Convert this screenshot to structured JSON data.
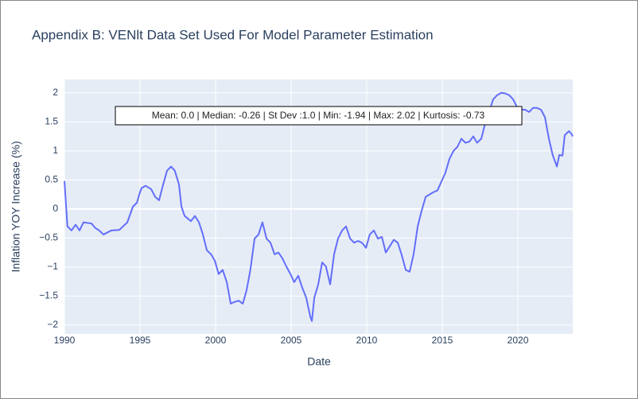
{
  "chart_data": {
    "type": "line",
    "title": "Appendix B: VENlt Data Set Used For Model Parameter Estimation",
    "x_label": "Date",
    "y_label": "Inflation YOY Increase (%)",
    "annotation": "Mean: 0.0 | Median: -0.26 | St Dev :1.0 | Min: -1.94 | Max: 2.02 | Kurtosis: -0.73",
    "xlim": [
      1990,
      2023.63
    ],
    "ylim": [
      -2.15,
      2.23
    ],
    "xticks": [
      1990,
      1995,
      2000,
      2005,
      2010,
      2015,
      2020
    ],
    "yticks": [
      {
        "value": -2,
        "label": "−2"
      },
      {
        "value": -1.5,
        "label": "−1.5"
      },
      {
        "value": -1,
        "label": "−1"
      },
      {
        "value": -0.5,
        "label": "−0.5"
      },
      0,
      0.5,
      1,
      1.5,
      2
    ],
    "grid": true,
    "x": [
      1990.0,
      1990.2,
      1990.47,
      1990.74,
      1991.0,
      1991.26,
      1991.79,
      1992.05,
      1992.3,
      1992.58,
      1993.1,
      1993.63,
      1994.16,
      1994.53,
      1994.8,
      1994.95,
      1995.1,
      1995.37,
      1995.74,
      1996.0,
      1996.26,
      1996.53,
      1996.79,
      1997.05,
      1997.3,
      1997.58,
      1997.74,
      1997.95,
      1998.37,
      1998.63,
      1998.9,
      1999.16,
      1999.42,
      1999.7,
      1999.95,
      2000.2,
      2000.47,
      2000.74,
      2001.0,
      2001.26,
      2001.53,
      2001.8,
      2002.05,
      2002.3,
      2002.58,
      2002.84,
      2003.1,
      2003.37,
      2003.63,
      2003.9,
      2004.16,
      2004.42,
      2004.68,
      2004.95,
      2005.2,
      2005.47,
      2005.74,
      2006.0,
      2006.26,
      2006.37,
      2006.53,
      2006.79,
      2007.05,
      2007.3,
      2007.58,
      2007.84,
      2008.1,
      2008.37,
      2008.63,
      2008.9,
      2009.16,
      2009.42,
      2009.68,
      2009.95,
      2010.2,
      2010.47,
      2010.74,
      2011.0,
      2011.26,
      2011.53,
      2011.79,
      2012.05,
      2012.3,
      2012.58,
      2012.84,
      2013.1,
      2013.37,
      2013.63,
      2013.9,
      2014.16,
      2014.42,
      2014.68,
      2014.95,
      2015.2,
      2015.47,
      2015.74,
      2016.0,
      2016.26,
      2016.53,
      2016.79,
      2017.05,
      2017.3,
      2017.58,
      2017.84,
      2018.1,
      2018.37,
      2018.63,
      2018.9,
      2019.16,
      2019.42,
      2019.68,
      2019.95,
      2020.2,
      2020.47,
      2020.74,
      2021.0,
      2021.26,
      2021.53,
      2021.79,
      2022.05,
      2022.3,
      2022.58,
      2022.74,
      2022.95,
      2023.1,
      2023.37,
      2023.53,
      2023.63
    ],
    "series": [
      {
        "color": "#636efa",
        "values": [
          0.48,
          -0.3,
          -0.37,
          -0.27,
          -0.37,
          -0.23,
          -0.25,
          -0.33,
          -0.37,
          -0.44,
          -0.37,
          -0.36,
          -0.23,
          0.04,
          0.11,
          0.25,
          0.36,
          0.4,
          0.34,
          0.21,
          0.15,
          0.42,
          0.66,
          0.73,
          0.66,
          0.42,
          0.04,
          -0.12,
          -0.21,
          -0.12,
          -0.23,
          -0.44,
          -0.71,
          -0.78,
          -0.89,
          -1.12,
          -1.05,
          -1.26,
          -1.63,
          -1.6,
          -1.58,
          -1.63,
          -1.4,
          -1.05,
          -0.51,
          -0.44,
          -0.23,
          -0.51,
          -0.58,
          -0.78,
          -0.75,
          -0.85,
          -0.99,
          -1.12,
          -1.26,
          -1.15,
          -1.36,
          -1.53,
          -1.85,
          -1.93,
          -1.53,
          -1.3,
          -0.92,
          -0.99,
          -1.3,
          -0.78,
          -0.51,
          -0.37,
          -0.3,
          -0.51,
          -0.58,
          -0.55,
          -0.58,
          -0.67,
          -0.44,
          -0.37,
          -0.51,
          -0.48,
          -0.75,
          -0.64,
          -0.53,
          -0.58,
          -0.78,
          -1.05,
          -1.08,
          -0.78,
          -0.3,
          -0.03,
          0.21,
          0.25,
          0.29,
          0.32,
          0.48,
          0.62,
          0.86,
          1.0,
          1.07,
          1.21,
          1.14,
          1.16,
          1.25,
          1.14,
          1.21,
          1.48,
          1.68,
          1.89,
          1.96,
          2.0,
          1.99,
          1.96,
          1.89,
          1.75,
          1.71,
          1.71,
          1.67,
          1.74,
          1.74,
          1.71,
          1.58,
          1.21,
          0.93,
          0.73,
          0.93,
          0.92,
          1.27,
          1.34,
          1.3,
          1.25
        ]
      }
    ]
  }
}
